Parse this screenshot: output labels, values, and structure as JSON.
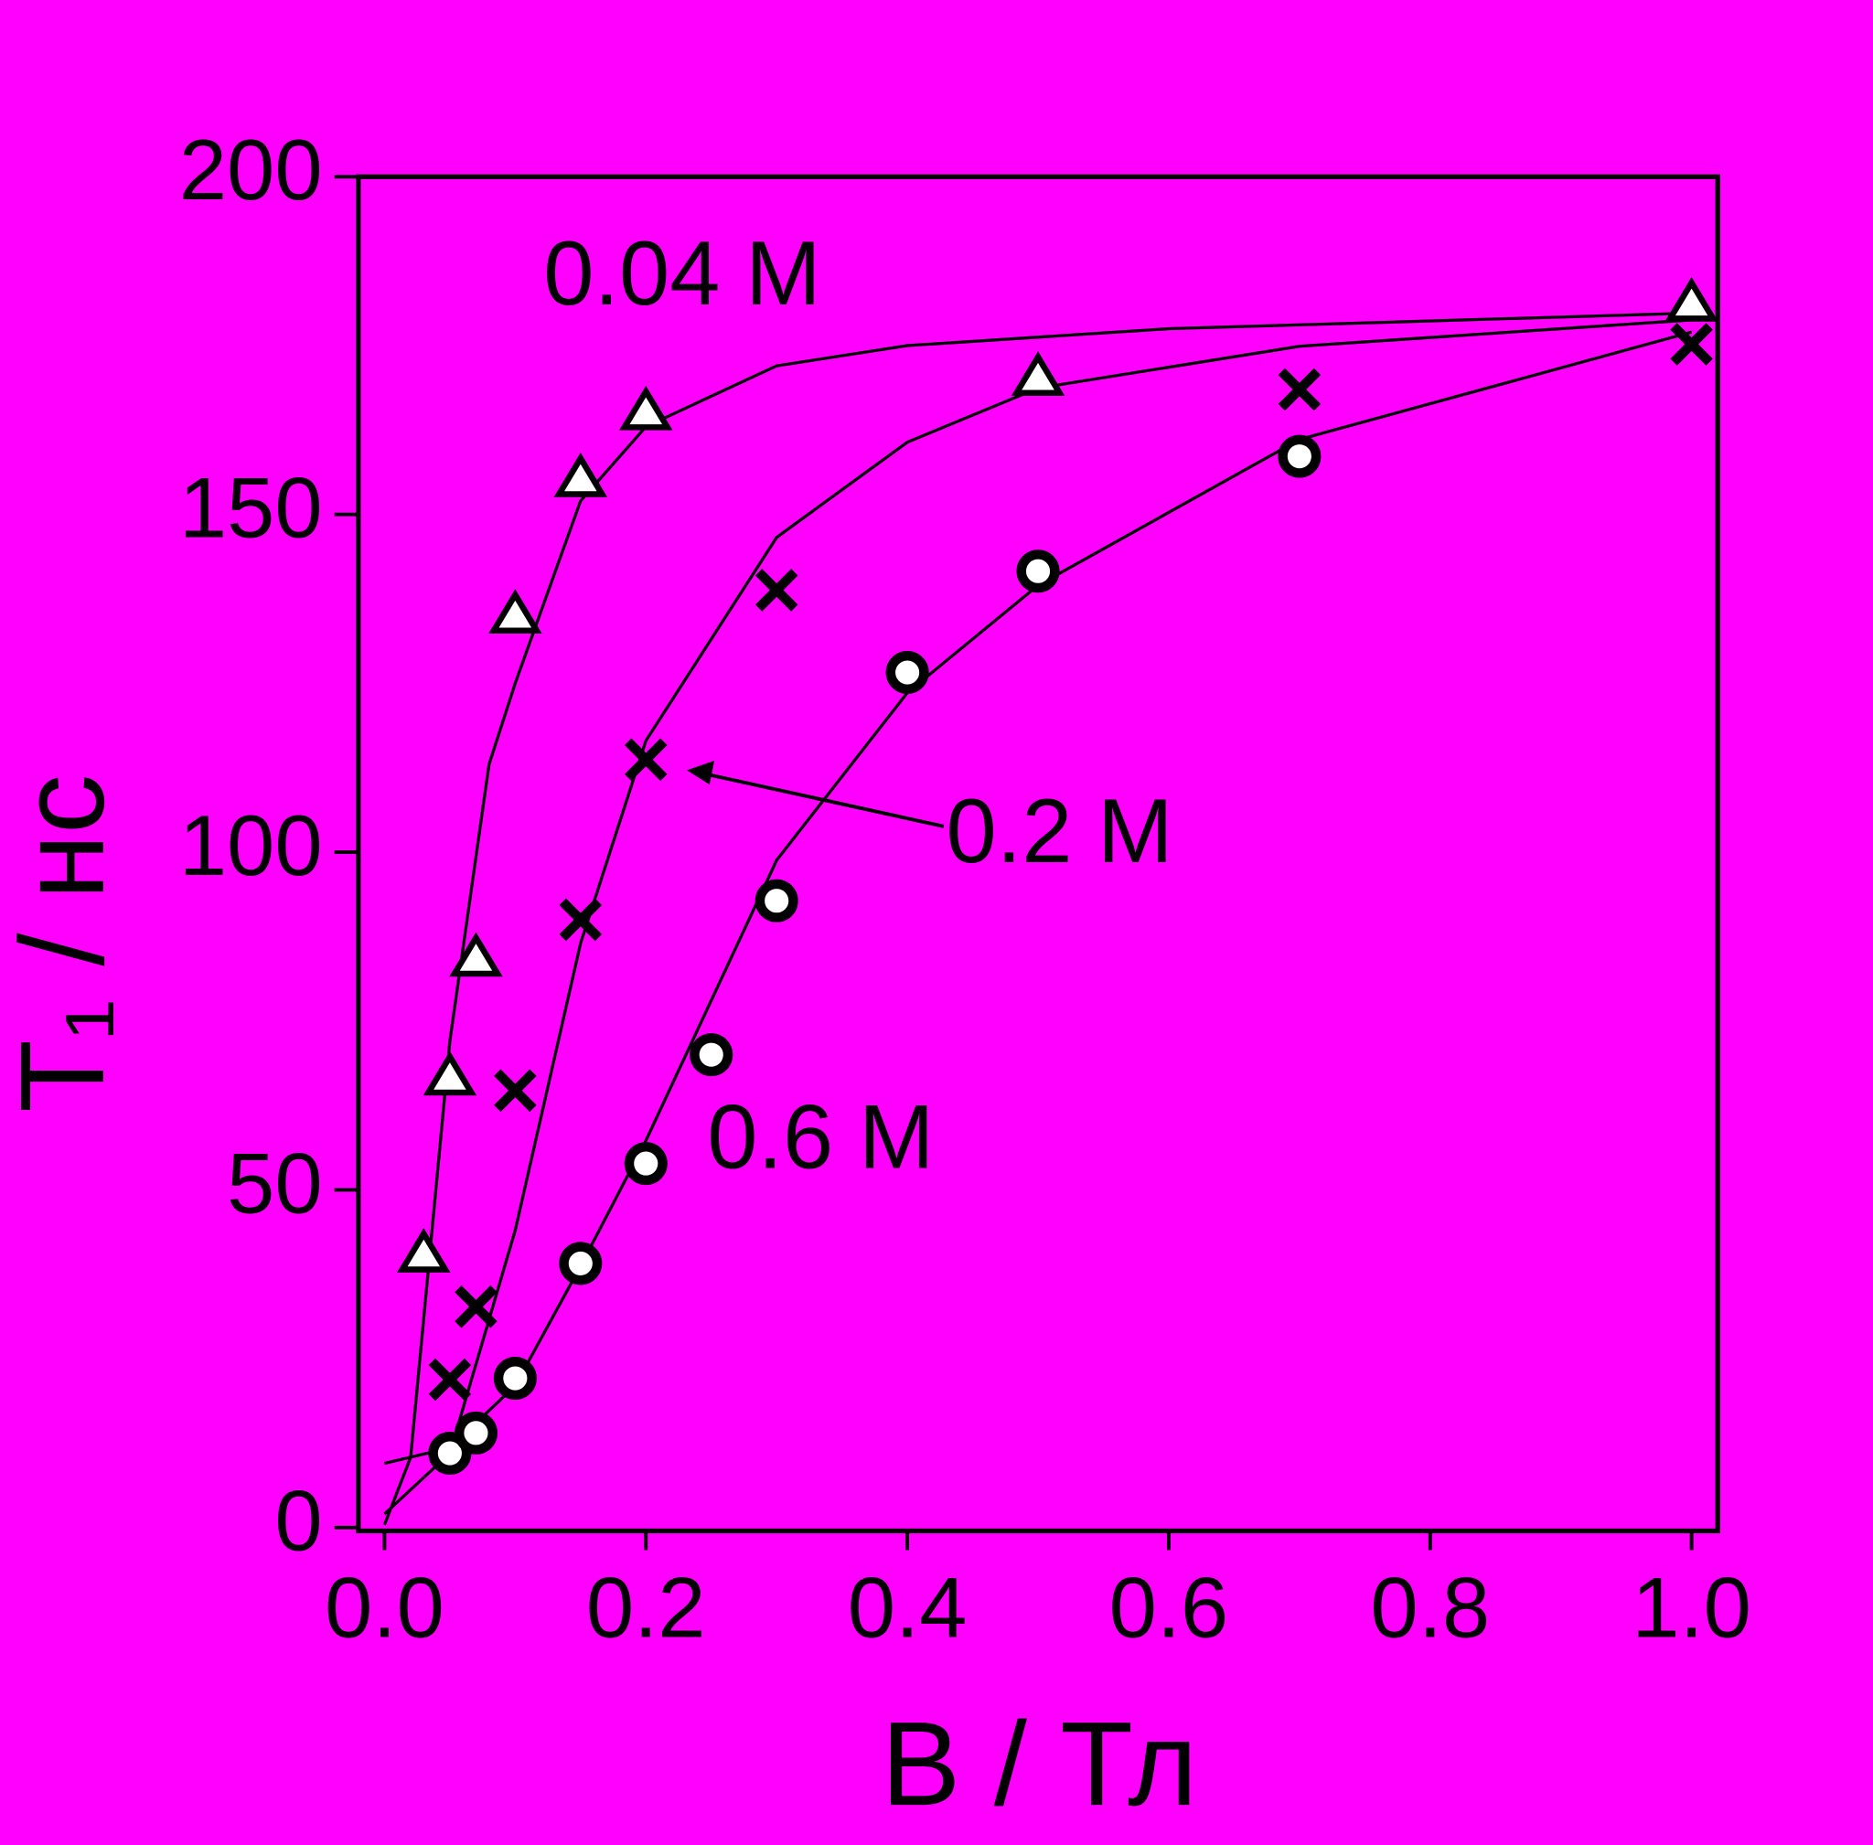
{
  "chart_data": {
    "type": "scatter",
    "background": "#ff00ff",
    "xlabel": "B / Тл",
    "ylabel": "T₁ / нс",
    "xlim": [
      -0.02,
      1.02
    ],
    "ylim": [
      -0.5,
      200
    ],
    "xticks": [
      {
        "value": 0,
        "label": "0.0"
      },
      0.2,
      0.4,
      0.6,
      0.8,
      {
        "value": 1,
        "label": "1.0"
      }
    ],
    "yticks": [
      0,
      50,
      100,
      150,
      200
    ],
    "series": [
      {
        "name": "0.04 M",
        "marker": "triangle",
        "color": "#ffffff",
        "x": [
          0.03,
          0.05,
          0.07,
          0.1,
          0.15,
          0.2,
          0.5,
          1.0
        ],
        "values": [
          40.5,
          66.7,
          84.3,
          135.1,
          155.3,
          165.2,
          170.3,
          181.3
        ]
      },
      {
        "name": "0.2 M",
        "marker": "cross",
        "color": "#000000",
        "x": [
          0.05,
          0.07,
          0.1,
          0.15,
          0.2,
          0.3,
          0.7,
          1.0
        ],
        "values": [
          21.9,
          32.7,
          64.7,
          90.0,
          113.7,
          138.8,
          168.5,
          175.2
        ]
      },
      {
        "name": "0.6 M",
        "marker": "circle",
        "color": "#ffffff",
        "x": [
          0.05,
          0.07,
          0.1,
          0.15,
          0.2,
          0.25,
          0.3,
          0.4,
          0.5,
          0.7
        ],
        "values": [
          11.0,
          14.0,
          22.1,
          39.1,
          53.9,
          70.0,
          92.8,
          126.6,
          141.6,
          158.6
        ]
      }
    ],
    "fits": [
      {
        "color": "#000000",
        "x": [
          0.0,
          0.02,
          0.05,
          0.08,
          0.1,
          0.15,
          0.2,
          0.3,
          0.4,
          0.6,
          1.0
        ],
        "values": [
          0.4,
          10.4,
          72,
          113,
          125,
          152,
          163,
          172,
          175,
          177.5,
          179.8
        ]
      },
      {
        "color": "#000000",
        "x": [
          0.0,
          0.05,
          0.1,
          0.15,
          0.2,
          0.3,
          0.4,
          0.5,
          0.7,
          1.0
        ],
        "values": [
          2,
          11,
          44,
          86.5,
          116.5,
          146.6,
          160.7,
          168.7,
          174.9,
          178.8
        ]
      },
      {
        "color": "#000000",
        "x": [
          0.0,
          0.05,
          0.1,
          0.15,
          0.2,
          0.3,
          0.4,
          0.5,
          0.7,
          1.0
        ],
        "values": [
          9.5,
          11.8,
          21,
          38.7,
          57.3,
          98.8,
          123.6,
          139.5,
          161.1,
          177
        ]
      }
    ]
  }
}
